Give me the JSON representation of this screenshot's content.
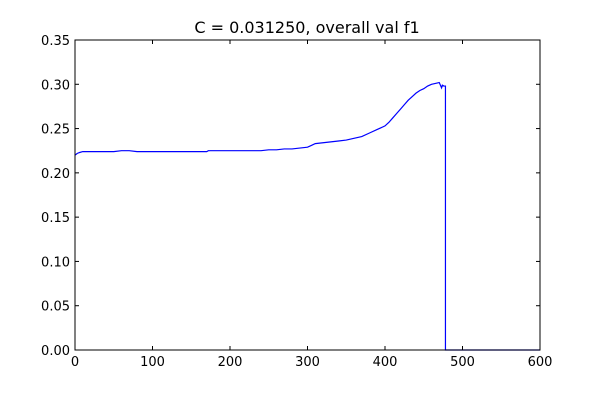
{
  "chart_data": {
    "type": "line",
    "title": "C = 0.031250, overall val f1",
    "xlabel": "",
    "ylabel": "",
    "xlim": [
      0,
      600
    ],
    "ylim": [
      0,
      0.35
    ],
    "grid": false,
    "legend": "none",
    "x_ticks": [
      "0",
      "100",
      "200",
      "300",
      "400",
      "500",
      "600"
    ],
    "y_ticks": [
      "0.00",
      "0.05",
      "0.10",
      "0.15",
      "0.20",
      "0.25",
      "0.30",
      "0.35"
    ],
    "series": [
      {
        "color": "#0000ff",
        "x": [
          0,
          3,
          6,
          10,
          20,
          30,
          40,
          50,
          60,
          70,
          80,
          90,
          100,
          110,
          120,
          130,
          140,
          150,
          160,
          170,
          172,
          180,
          190,
          200,
          210,
          220,
          230,
          240,
          250,
          260,
          270,
          280,
          290,
          300,
          305,
          310,
          320,
          330,
          340,
          350,
          360,
          370,
          380,
          390,
          400,
          405,
          410,
          415,
          420,
          425,
          430,
          435,
          440,
          445,
          450,
          455,
          460,
          465,
          470,
          473,
          474,
          476,
          478,
          478,
          485,
          500,
          550,
          600
        ],
        "y": [
          0.22,
          0.222,
          0.223,
          0.224,
          0.224,
          0.224,
          0.224,
          0.224,
          0.225,
          0.225,
          0.224,
          0.224,
          0.224,
          0.224,
          0.224,
          0.224,
          0.224,
          0.224,
          0.224,
          0.224,
          0.225,
          0.225,
          0.225,
          0.225,
          0.225,
          0.225,
          0.225,
          0.225,
          0.226,
          0.226,
          0.227,
          0.227,
          0.228,
          0.229,
          0.231,
          0.233,
          0.234,
          0.235,
          0.236,
          0.237,
          0.239,
          0.241,
          0.245,
          0.249,
          0.253,
          0.257,
          0.262,
          0.267,
          0.272,
          0.277,
          0.282,
          0.286,
          0.29,
          0.293,
          0.295,
          0.298,
          0.3,
          0.301,
          0.302,
          0.296,
          0.299,
          0.298,
          0.298,
          0.0,
          0.0,
          0.0,
          0.0,
          0.0
        ]
      }
    ]
  }
}
